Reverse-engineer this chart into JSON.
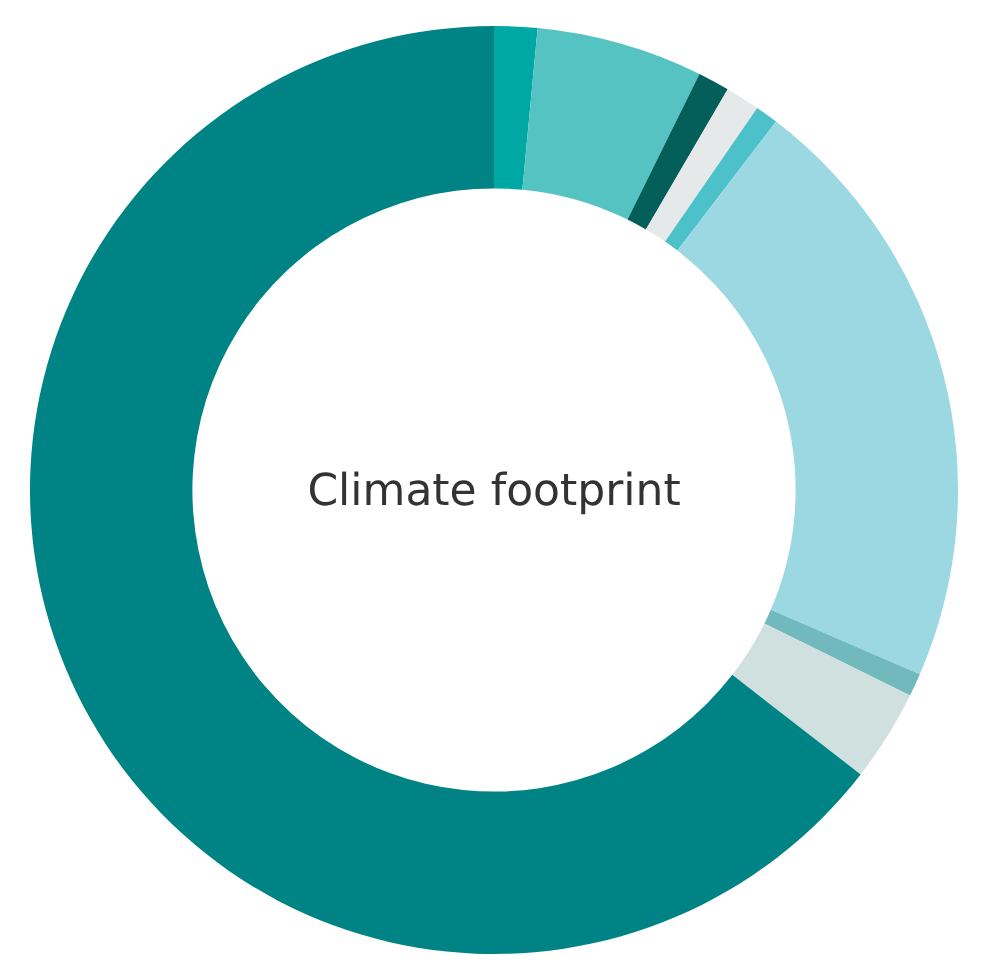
{
  "chart_data": {
    "type": "donut",
    "title": "Climate footprint",
    "categories": [
      null,
      null,
      null,
      null,
      null,
      null,
      null,
      null,
      null
    ],
    "values": [
      1.5,
      5.8,
      1.1,
      1.2,
      0.8,
      21.1,
      0.8,
      3.2,
      64.5
    ],
    "colors": [
      "#00a8a3",
      "#55c3c2",
      "#045f5b",
      "#e6e9e9",
      "#4dc1c9",
      "#9bd8e1",
      "#72b9bd",
      "#cfe0df",
      "#008384"
    ]
  }
}
